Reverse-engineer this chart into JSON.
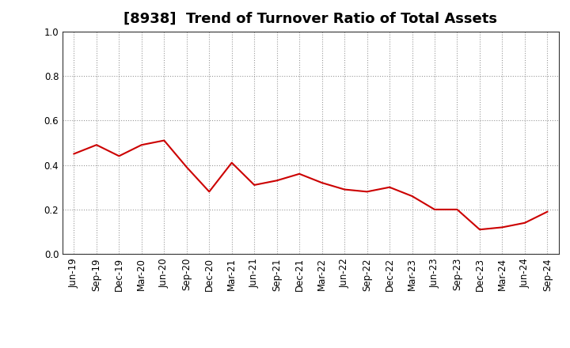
{
  "title": "[8938]  Trend of Turnover Ratio of Total Assets",
  "x_labels": [
    "Jun-19",
    "Sep-19",
    "Dec-19",
    "Mar-20",
    "Jun-20",
    "Sep-20",
    "Dec-20",
    "Mar-21",
    "Jun-21",
    "Sep-21",
    "Dec-21",
    "Mar-22",
    "Jun-22",
    "Sep-22",
    "Dec-22",
    "Mar-23",
    "Jun-23",
    "Sep-23",
    "Dec-23",
    "Mar-24",
    "Jun-24",
    "Sep-24"
  ],
  "y_values": [
    0.45,
    0.49,
    0.44,
    0.49,
    0.51,
    0.39,
    0.28,
    0.41,
    0.31,
    0.33,
    0.36,
    0.32,
    0.29,
    0.28,
    0.3,
    0.26,
    0.2,
    0.2,
    0.11,
    0.12,
    0.14,
    0.19
  ],
  "line_color": "#cc0000",
  "ylim": [
    0.0,
    1.0
  ],
  "yticks": [
    0.0,
    0.2,
    0.4,
    0.6,
    0.8,
    1.0
  ],
  "background_color": "#ffffff",
  "grid_color": "#999999",
  "title_fontsize": 13,
  "tick_fontsize": 8.5
}
